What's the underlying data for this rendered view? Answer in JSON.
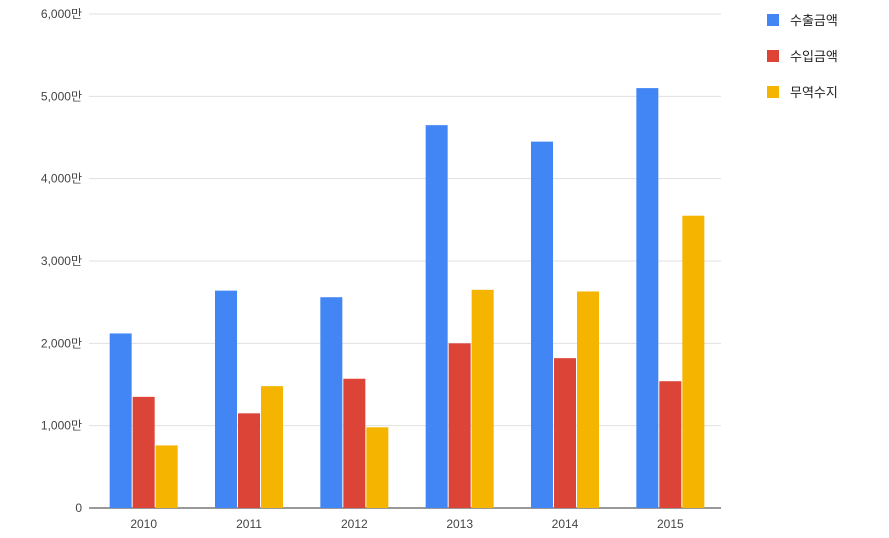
{
  "chart_data": {
    "type": "bar",
    "title": "",
    "xlabel": "",
    "ylabel": "",
    "categories": [
      "2010",
      "2011",
      "2012",
      "2013",
      "2014",
      "2015"
    ],
    "series": [
      {
        "name": "수출금액",
        "color": "#4285f4",
        "values": [
          21200000,
          26400000,
          25600000,
          46500000,
          44500000,
          51000000
        ]
      },
      {
        "name": "수입금액",
        "color": "#db4437",
        "values": [
          13500000,
          11500000,
          15700000,
          20000000,
          18200000,
          15400000
        ]
      },
      {
        "name": "무역수지",
        "color": "#f4b400",
        "values": [
          7600000,
          14800000,
          9800000,
          26500000,
          26300000,
          35500000
        ]
      }
    ],
    "ylim": [
      0,
      60000000
    ],
    "y_ticks": [
      {
        "value": 0,
        "label": "0"
      },
      {
        "value": 10000000,
        "label": "1,000만"
      },
      {
        "value": 20000000,
        "label": "2,000만"
      },
      {
        "value": 30000000,
        "label": "3,000만"
      },
      {
        "value": 40000000,
        "label": "4,000만"
      },
      {
        "value": 50000000,
        "label": "5,000만"
      },
      {
        "value": 60000000,
        "label": "6,000만"
      }
    ],
    "grid": true,
    "legend_position": "top-right"
  }
}
